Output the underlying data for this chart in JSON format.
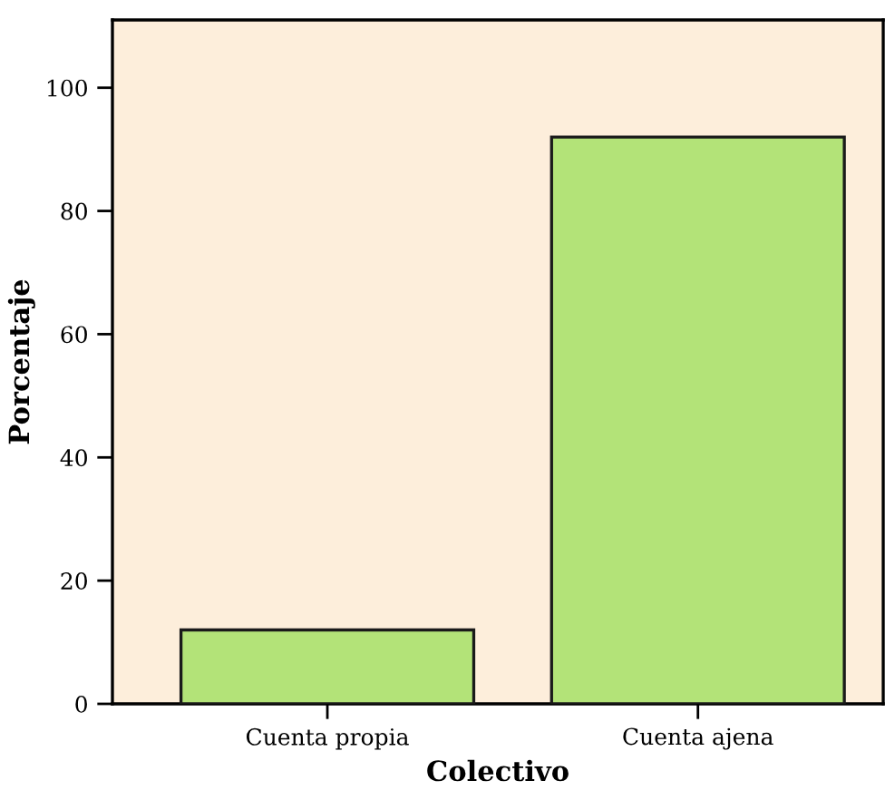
{
  "chart_data": {
    "type": "bar",
    "xlabel": "Colectivo",
    "ylabel": "Porcentaje",
    "categories": [
      "Cuenta propia",
      "Cuenta ajena"
    ],
    "values": [
      12,
      92
    ],
    "color": "#b3e378",
    "ylim": [
      0,
      111
    ],
    "yticks": [
      0,
      20,
      40,
      60,
      80,
      100
    ],
    "grid": false,
    "legend": false
  }
}
